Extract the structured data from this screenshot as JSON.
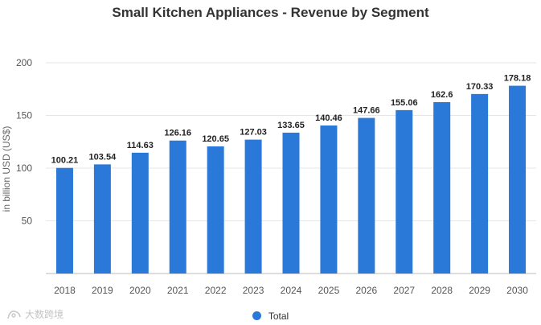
{
  "title": "Small Kitchen Appliances - Revenue by Segment",
  "legend": {
    "label": "Total"
  },
  "watermark": {
    "text": "大数跨境"
  },
  "colors": {
    "bar": "#2a79d9",
    "grid": "#e6e6e6",
    "axis": "#bbbbbb"
  },
  "chart_data": {
    "type": "bar",
    "title": "Small Kitchen Appliances - Revenue by Segment",
    "xlabel": "",
    "ylabel": "in billion USD (US$)",
    "ylim": [
      0,
      200
    ],
    "yticks": [
      50,
      100,
      150,
      200
    ],
    "grid": true,
    "legend_position": "bottom",
    "categories": [
      "2018",
      "2019",
      "2020",
      "2021",
      "2022",
      "2023",
      "2024",
      "2025",
      "2026",
      "2027",
      "2028",
      "2029",
      "2030"
    ],
    "series": [
      {
        "name": "Total",
        "values": [
          100.21,
          103.54,
          114.63,
          126.16,
          120.65,
          127.03,
          133.65,
          140.46,
          147.66,
          155.06,
          162.6,
          170.33,
          178.18
        ]
      }
    ]
  }
}
